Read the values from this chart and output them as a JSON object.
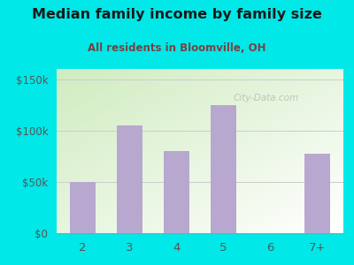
{
  "categories": [
    "2",
    "3",
    "4",
    "5",
    "6",
    "7+"
  ],
  "values": [
    50000,
    105000,
    80000,
    125000,
    0,
    77000
  ],
  "bar_color": "#b8a8d0",
  "title": "Median family income by family size",
  "subtitle": "All residents in Bloomville, OH",
  "title_color": "#1a1a1a",
  "subtitle_color": "#7a4040",
  "bg_color": "#00e8e8",
  "plot_bg_color_top_left": "#c8e8c0",
  "plot_bg_color_bottom_right": "#ffffff",
  "yticks": [
    0,
    50000,
    100000,
    150000
  ],
  "ytick_labels": [
    "$0",
    "$50k",
    "$100k",
    "$150k"
  ],
  "ylim": [
    0,
    160000
  ],
  "watermark": "City-Data.com",
  "tick_color": "#555555",
  "grid_color": "#cccccc"
}
